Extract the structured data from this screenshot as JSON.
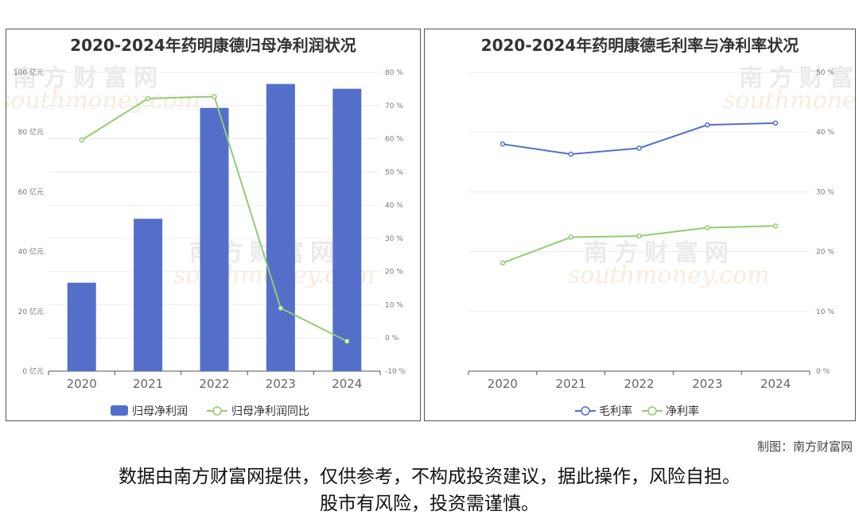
{
  "chart_data": [
    {
      "type": "bar",
      "title": "2020-2024年药明康德归母净利润状况",
      "categories": [
        "2020",
        "2021",
        "2022",
        "2023",
        "2024"
      ],
      "y_left": {
        "ticks": [
          "0 亿元",
          "20 亿元",
          "40 亿元",
          "60 亿元",
          "80 亿元",
          "100 亿元"
        ],
        "range": [
          0,
          100
        ]
      },
      "y_right": {
        "ticks": [
          "-10 %",
          "0 %",
          "10 %",
          "20 %",
          "30 %",
          "40 %",
          "50 %",
          "60 %",
          "70 %",
          "80 %"
        ],
        "range": [
          -10,
          80
        ]
      },
      "series": [
        {
          "name": "归母净利润",
          "type": "bar",
          "axis": "left",
          "color": "#536fc9",
          "values": [
            29.6,
            51.0,
            88.1,
            96.1,
            94.5
          ]
        },
        {
          "name": "归母净利润同比",
          "type": "line",
          "axis": "right",
          "color": "#91cc75",
          "values": [
            59.6,
            72.1,
            72.7,
            9.0,
            -1.0
          ]
        }
      ],
      "legend": "bottom-center",
      "grid": true
    },
    {
      "type": "line",
      "title": "2020-2024年药明康德毛利率与净利率状况",
      "categories": [
        "2020",
        "2021",
        "2022",
        "2023",
        "2024"
      ],
      "y_right": {
        "ticks": [
          "0 %",
          "10 %",
          "20 %",
          "30 %",
          "40 %",
          "50 %"
        ],
        "range": [
          0,
          50
        ]
      },
      "series": [
        {
          "name": "毛利率",
          "type": "line",
          "axis": "right",
          "color": "#536fc9",
          "values": [
            38.0,
            36.3,
            37.3,
            41.2,
            41.5
          ]
        },
        {
          "name": "净利率",
          "type": "line",
          "axis": "right",
          "color": "#91cc75",
          "values": [
            18.1,
            22.4,
            22.6,
            24.0,
            24.3
          ]
        }
      ],
      "legend": "bottom-center",
      "grid": true
    }
  ],
  "watermark": {
    "cn": "南方财富网",
    "en": "southmoney.com"
  },
  "credit": "制图：南方财富网",
  "disclaimer": {
    "line1": "数据由南方财富网提供，仅供参考，不构成投资建议，据此操作，风险自担。",
    "line2": "股市有风险，投资需谨慎。"
  }
}
